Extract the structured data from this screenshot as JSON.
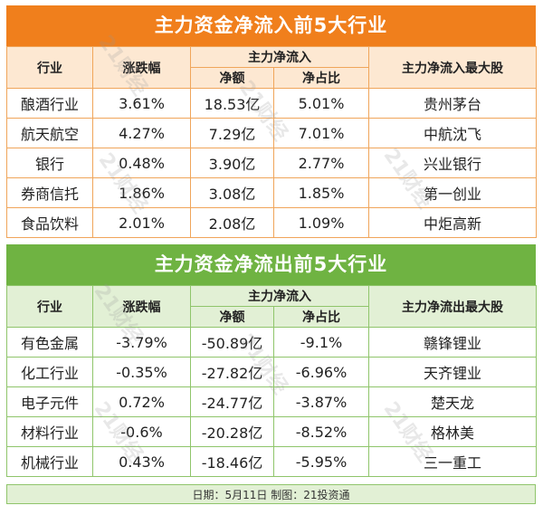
{
  "inflow": {
    "title": "主力资金净流入前5大行业",
    "headers": {
      "industry": "行业",
      "change": "涨跌幅",
      "group": "主力净流入",
      "net": "净额",
      "ratio": "净占比",
      "top_stock": "主力净流入最大股"
    },
    "rows": [
      {
        "industry": "酿酒行业",
        "change": "3.61%",
        "net": "18.53亿",
        "ratio": "5.01%",
        "top_stock": "贵州茅台"
      },
      {
        "industry": "航天航空",
        "change": "4.27%",
        "net": "7.29亿",
        "ratio": "7.01%",
        "top_stock": "中航沈飞"
      },
      {
        "industry": "银行",
        "change": "0.48%",
        "net": "3.90亿",
        "ratio": "2.77%",
        "top_stock": "兴业银行"
      },
      {
        "industry": "券商信托",
        "change": "1.86%",
        "net": "3.08亿",
        "ratio": "1.85%",
        "top_stock": "第一创业"
      },
      {
        "industry": "食品饮料",
        "change": "2.01%",
        "net": "2.08亿",
        "ratio": "1.09%",
        "top_stock": "中炬高新"
      }
    ]
  },
  "outflow": {
    "title": "主力资金净流出前5大行业",
    "headers": {
      "industry": "行业",
      "change": "涨跌幅",
      "group": "主力净流入",
      "net": "净额",
      "ratio": "净占比",
      "top_stock": "主力净流出最大股"
    },
    "rows": [
      {
        "industry": "有色金属",
        "change": "-3.79%",
        "net": "-50.89亿",
        "ratio": "-9.1%",
        "top_stock": "赣锋锂业"
      },
      {
        "industry": "化工行业",
        "change": "-0.35%",
        "net": "-27.82亿",
        "ratio": "-6.96%",
        "top_stock": "天齐锂业"
      },
      {
        "industry": "电子元件",
        "change": "0.72%",
        "net": "-24.77亿",
        "ratio": "-3.87%",
        "top_stock": "楚天龙"
      },
      {
        "industry": "材料行业",
        "change": "-0.6%",
        "net": "-20.28亿",
        "ratio": "-8.52%",
        "top_stock": "格林美"
      },
      {
        "industry": "机械行业",
        "change": "0.43%",
        "net": "-18.46亿",
        "ratio": "-5.95%",
        "top_stock": "三一重工"
      }
    ]
  },
  "footer": "日期：5月11日 制图：21投资通",
  "watermark": "21财经",
  "colors": {
    "inflow_accent": "#f07f1c",
    "outflow_accent": "#6fb342"
  }
}
